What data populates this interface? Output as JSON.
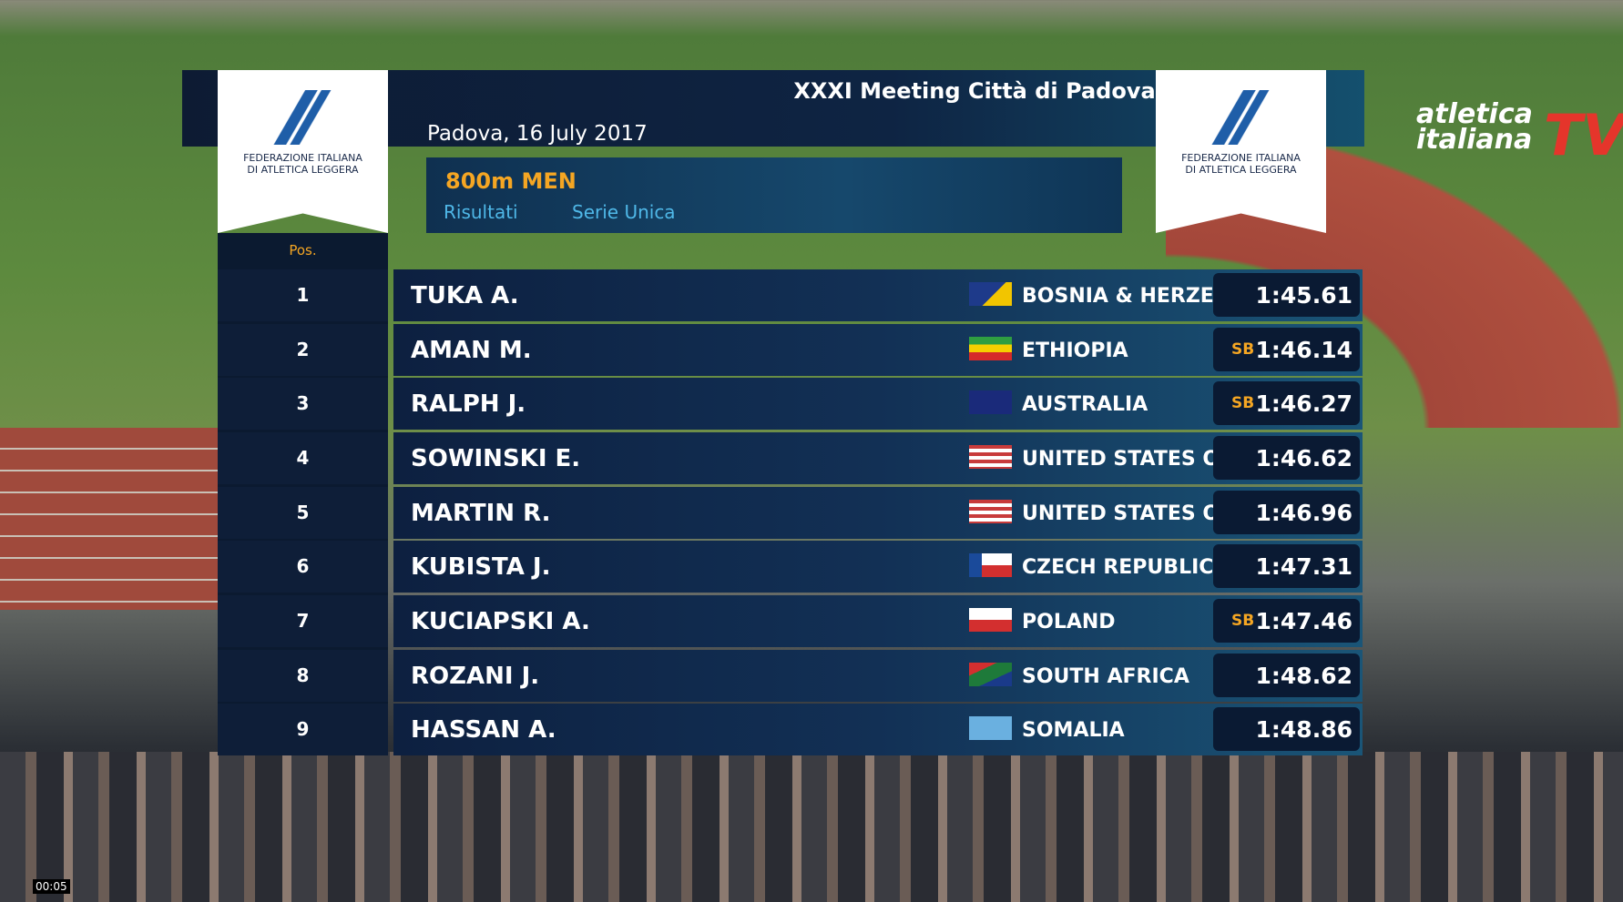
{
  "header": {
    "title": "XXXI Meeting Città di Padova",
    "date": "Padova, 16 July 2017",
    "event": "800m MEN",
    "subtitle_left": "Risultati",
    "subtitle_right": "Serie Unica"
  },
  "logos": {
    "left": [
      "FEDERAZIONE ITALIANA",
      "DI ATLETICA LEGGERA"
    ],
    "right": [
      "FEDERAZIONE ITALIANA",
      "DI ATLETICA LEGGERA"
    ]
  },
  "table": {
    "pos_header": "Pos.",
    "rows": [
      {
        "pos": "1",
        "name": "TUKA A.",
        "country": "BOSNIA & HERZEGOVINA",
        "note": null,
        "time": "1:45.61"
      },
      {
        "pos": "2",
        "name": "AMAN M.",
        "country": "ETHIOPIA",
        "note": "SB",
        "time": "1:46.14"
      },
      {
        "pos": "3",
        "name": "RALPH J.",
        "country": "AUSTRALIA",
        "note": "SB",
        "time": "1:46.27"
      },
      {
        "pos": "4",
        "name": "SOWINSKI E.",
        "country": "UNITED STATES OF AMERICA",
        "note": null,
        "time": "1:46.62"
      },
      {
        "pos": "5",
        "name": "MARTIN R.",
        "country": "UNITED STATES OF AMERICA",
        "note": null,
        "time": "1:46.96"
      },
      {
        "pos": "6",
        "name": "KUBISTA J.",
        "country": "CZECH REPUBLIC",
        "note": null,
        "time": "1:47.31"
      },
      {
        "pos": "7",
        "name": "KUCIAPSKI A.",
        "country": "POLAND",
        "note": "SB",
        "time": "1:47.46"
      },
      {
        "pos": "8",
        "name": "ROZANI J.",
        "country": "SOUTH AFRICA",
        "note": null,
        "time": "1:48.62"
      },
      {
        "pos": "9",
        "name": "HASSAN A.",
        "country": "SOMALIA",
        "note": null,
        "time": "1:48.86"
      }
    ]
  },
  "brand": {
    "line1": "atletica",
    "line2": "italiana",
    "tv": "TV"
  },
  "player": {
    "timestamp": "00:05"
  }
}
